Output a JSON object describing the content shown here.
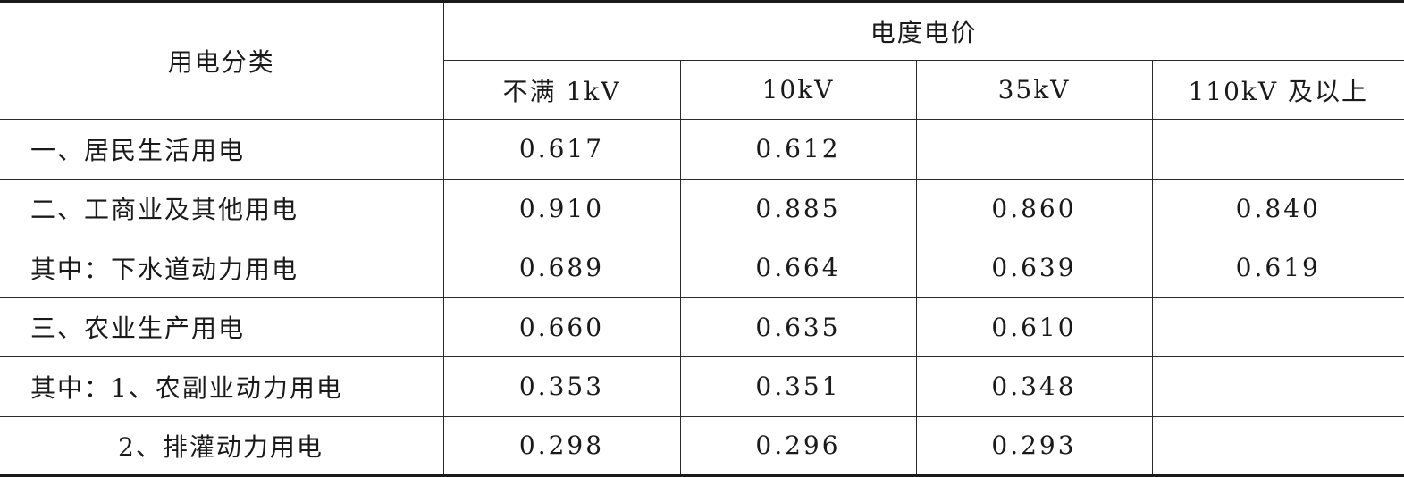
{
  "table": {
    "header": {
      "category_label": "用电分类",
      "group_label": "电度电价",
      "voltage_levels": [
        "不满 1kV",
        "10kV",
        "35kV",
        "110kV 及以上"
      ]
    },
    "rows": [
      {
        "category": "一、居民生活用电",
        "values": [
          "0.617",
          "0.612",
          "",
          ""
        ]
      },
      {
        "category": "二、工商业及其他用电",
        "values": [
          "0.910",
          "0.885",
          "0.860",
          "0.840"
        ]
      },
      {
        "category": "其中：下水道动力用电",
        "values": [
          "0.689",
          "0.664",
          "0.639",
          "0.619"
        ]
      },
      {
        "category": "三、农业生产用电",
        "values": [
          "0.660",
          "0.635",
          "0.610",
          ""
        ]
      },
      {
        "category": "其中：1、农副业动力用电",
        "values": [
          "0.353",
          "0.351",
          "0.348",
          ""
        ]
      },
      {
        "category": "2、排灌动力用电",
        "values": [
          "0.298",
          "0.296",
          "0.293",
          ""
        ]
      }
    ]
  }
}
